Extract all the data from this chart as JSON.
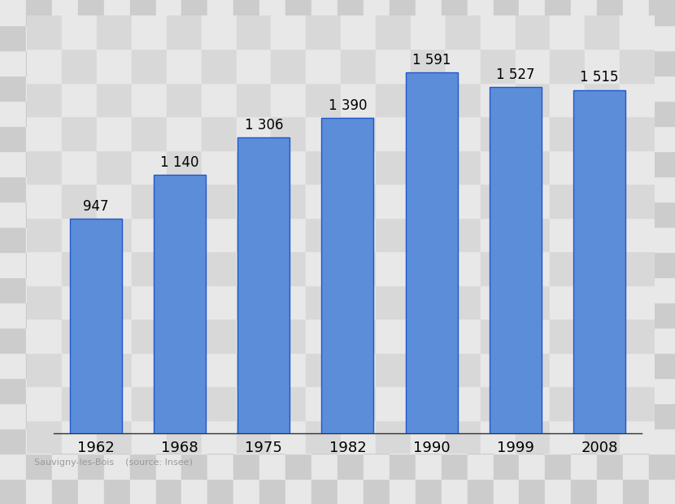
{
  "years": [
    "1962",
    "1968",
    "1975",
    "1982",
    "1990",
    "1999",
    "2008"
  ],
  "values": [
    947,
    1140,
    1306,
    1390,
    1591,
    1527,
    1515
  ],
  "bar_color": "#5b8dd9",
  "bar_edge_color": "#2255cc",
  "label_values": [
    "947",
    "1 140",
    "1 306",
    "1 390",
    "1 591",
    "1 527",
    "1 515"
  ],
  "source_text": "Sauvigny-les-Bois    (source: Insee)",
  "label_fontsize": 12,
  "tick_fontsize": 13,
  "source_fontsize": 8,
  "ylim": [
    0,
    1800
  ],
  "checker_light": "#e8e8e8",
  "checker_dark": "#cccccc",
  "plot_bg": "#dcdcdc",
  "border_color": "#444444",
  "checker_cols": 26,
  "checker_rows": 20
}
